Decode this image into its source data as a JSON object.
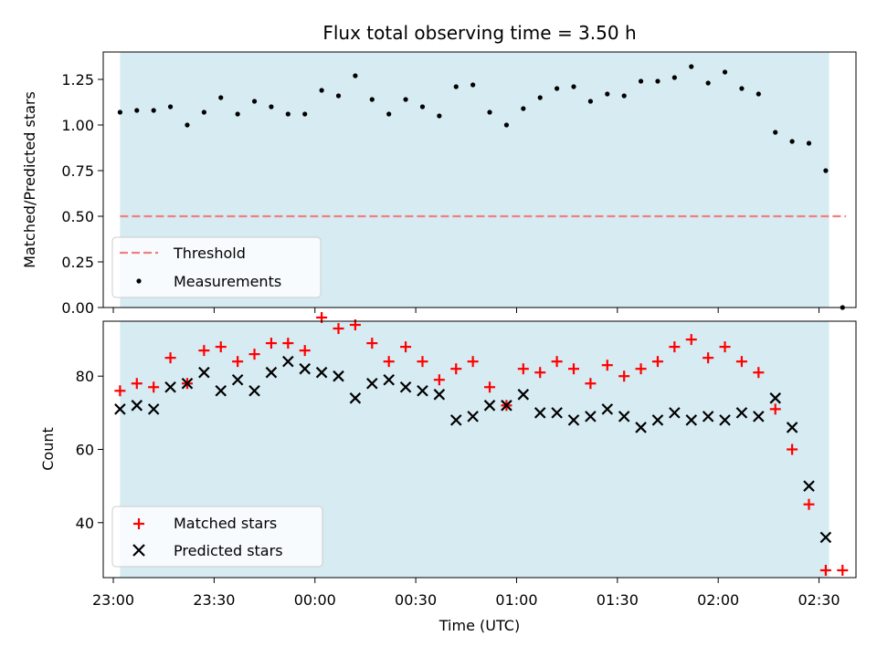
{
  "chart_data": [
    {
      "type": "scatter",
      "title": "Flux total observing time = 3.50 h",
      "ylabel": "Matched/Predicted stars",
      "ylim": [
        0,
        1.4
      ],
      "yticks": [
        "0.00",
        "0.25",
        "0.50",
        "0.75",
        "1.00",
        "1.25"
      ],
      "x_start": "23:02",
      "x_interval_min": 5,
      "shaded_span": [
        "23:02",
        "02:33"
      ],
      "shade_color": "#add8e6",
      "threshold": {
        "name": "Threshold",
        "value": 0.5,
        "x_range": [
          "23:02",
          "02:38"
        ],
        "color": "#f08080"
      },
      "series": [
        {
          "name": "Measurements",
          "color": "#000000",
          "values": [
            1.07,
            1.08,
            1.08,
            1.1,
            1.0,
            1.07,
            1.15,
            1.06,
            1.13,
            1.1,
            1.06,
            1.06,
            1.19,
            1.16,
            1.27,
            1.14,
            1.06,
            1.14,
            1.1,
            1.05,
            1.21,
            1.22,
            1.07,
            1.0,
            1.09,
            1.15,
            1.2,
            1.21,
            1.13,
            1.17,
            1.16,
            1.24,
            1.24,
            1.26,
            1.32,
            1.23,
            1.29,
            1.2,
            1.17,
            0.96,
            0.91,
            0.9,
            0.75,
            0.0
          ]
        }
      ],
      "legend": "lower-left"
    },
    {
      "type": "scatter",
      "xlabel": "Time (UTC)",
      "ylabel": "Count",
      "ylim": [
        25,
        95
      ],
      "yticks": [
        "40",
        "60",
        "80"
      ],
      "xlim": [
        "22:57",
        "02:41"
      ],
      "xticks": [
        "23:00",
        "23:30",
        "00:00",
        "00:30",
        "01:00",
        "01:30",
        "02:00",
        "02:30"
      ],
      "x_start": "23:02",
      "x_interval_min": 5,
      "series": [
        {
          "name": "Matched stars",
          "color": "#ff0000",
          "marker": "+",
          "values": [
            76,
            78,
            77,
            85,
            78,
            87,
            88,
            84,
            86,
            89,
            89,
            87,
            96,
            93,
            94,
            89,
            84,
            88,
            84,
            79,
            82,
            84,
            77,
            72,
            82,
            81,
            84,
            82,
            78,
            83,
            80,
            82,
            84,
            88,
            90,
            85,
            88,
            84,
            81,
            71,
            60,
            45,
            27,
            27
          ]
        },
        {
          "name": "Predicted stars",
          "color": "#000000",
          "marker": "x",
          "values": [
            71,
            72,
            71,
            77,
            78,
            81,
            76,
            79,
            76,
            81,
            84,
            82,
            81,
            80,
            74,
            78,
            79,
            77,
            76,
            75,
            68,
            69,
            72,
            72,
            75,
            70,
            70,
            68,
            69,
            71,
            69,
            66,
            68,
            70,
            68,
            69,
            68,
            70,
            69,
            74,
            66,
            50,
            36
          ]
        }
      ],
      "legend": "lower-left"
    }
  ]
}
